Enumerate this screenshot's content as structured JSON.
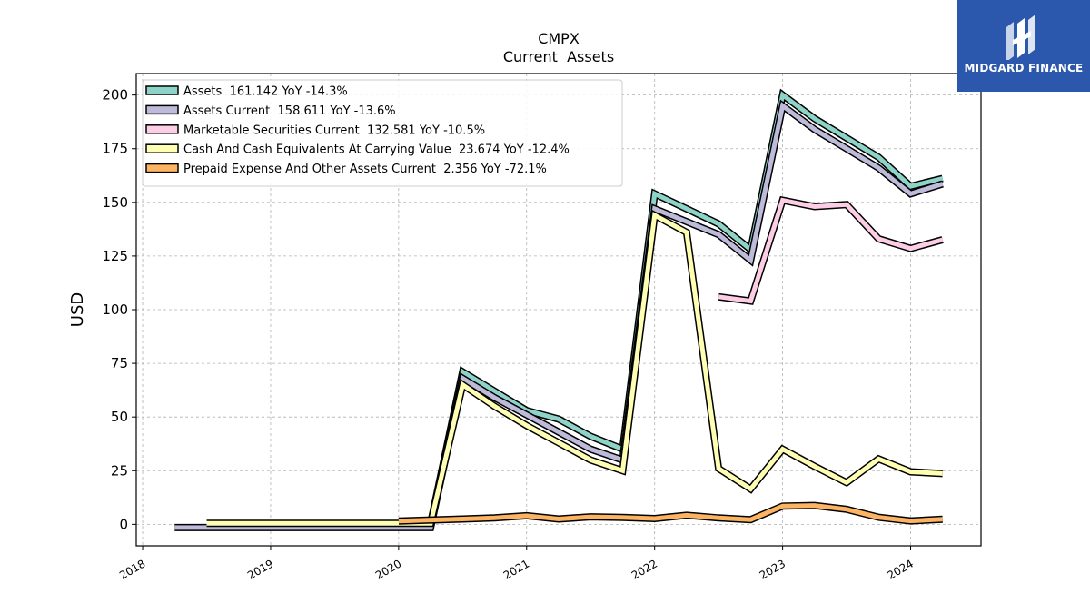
{
  "chart_data": {
    "type": "line",
    "title": "CMPX",
    "subtitle": "Current  Assets",
    "ylabel": "USD",
    "xlabel": "",
    "xlim": [
      2017.95,
      2024.55
    ],
    "ylim": [
      -10,
      210
    ],
    "xticks": [
      2018,
      2019,
      2020,
      2021,
      2022,
      2023,
      2024
    ],
    "xtick_labels": [
      "2018",
      "2019",
      "2020",
      "2021",
      "2022",
      "2023",
      "2024"
    ],
    "yticks": [
      0,
      25,
      50,
      75,
      100,
      125,
      150,
      175,
      200
    ],
    "grid": true,
    "legend_position": "top-left",
    "series": [
      {
        "name": "Assets  161.142 YoY -14.3%",
        "color": "#8dd3c7",
        "points": [
          [
            2020.0,
            0.5
          ],
          [
            2020.25,
            0.5
          ],
          [
            2020.5,
            71
          ],
          [
            2020.75,
            62
          ],
          [
            2021.0,
            53
          ],
          [
            2021.25,
            49
          ],
          [
            2021.5,
            41
          ],
          [
            2021.75,
            35
          ],
          [
            2022.0,
            154
          ],
          [
            2022.25,
            147
          ],
          [
            2022.5,
            140
          ],
          [
            2022.75,
            128
          ],
          [
            2023.0,
            200
          ],
          [
            2023.25,
            189
          ],
          [
            2023.5,
            180
          ],
          [
            2023.75,
            171
          ],
          [
            2024.0,
            157.5
          ],
          [
            2024.25,
            161.142
          ]
        ]
      },
      {
        "name": "Assets Current  158.611 YoY -13.6%",
        "color": "#bebada",
        "points": [
          [
            2018.25,
            -1.5
          ],
          [
            2018.5,
            -1.5
          ],
          [
            2018.75,
            -1.5
          ],
          [
            2019.0,
            -1.5
          ],
          [
            2019.25,
            -1.5
          ],
          [
            2019.5,
            -1.5
          ],
          [
            2019.75,
            -1.5
          ],
          [
            2020.0,
            -1.5
          ],
          [
            2020.25,
            -1.5
          ],
          [
            2020.5,
            68
          ],
          [
            2020.75,
            59
          ],
          [
            2021.0,
            51
          ],
          [
            2021.25,
            43
          ],
          [
            2021.5,
            35
          ],
          [
            2021.75,
            30
          ],
          [
            2022.0,
            147
          ],
          [
            2022.25,
            141
          ],
          [
            2022.5,
            135
          ],
          [
            2022.75,
            123
          ],
          [
            2023.0,
            195
          ],
          [
            2023.25,
            184
          ],
          [
            2023.5,
            175
          ],
          [
            2023.75,
            166
          ],
          [
            2024.0,
            154
          ],
          [
            2024.25,
            158.611
          ]
        ]
      },
      {
        "name": "Marketable Securities Current  132.581 YoY -10.5%",
        "color": "#fccde5",
        "points": [
          [
            2022.5,
            106
          ],
          [
            2022.75,
            104
          ],
          [
            2023.0,
            151
          ],
          [
            2023.25,
            148
          ],
          [
            2023.5,
            149
          ],
          [
            2023.75,
            133
          ],
          [
            2024.0,
            128.5
          ],
          [
            2024.25,
            132.581
          ]
        ]
      },
      {
        "name": "Cash And Cash Equivalents At Carrying Value  23.674 YoY -12.4%",
        "color": "#ffffb3",
        "points": [
          [
            2018.5,
            0.5
          ],
          [
            2018.75,
            0.5
          ],
          [
            2019.0,
            0.5
          ],
          [
            2019.25,
            0.5
          ],
          [
            2019.5,
            0.5
          ],
          [
            2019.75,
            0.5
          ],
          [
            2020.0,
            0.5
          ],
          [
            2020.25,
            0.5
          ],
          [
            2020.5,
            65
          ],
          [
            2020.75,
            55
          ],
          [
            2021.0,
            46
          ],
          [
            2021.25,
            38
          ],
          [
            2021.5,
            30
          ],
          [
            2021.75,
            25
          ],
          [
            2022.0,
            144
          ],
          [
            2022.25,
            136
          ],
          [
            2022.5,
            26
          ],
          [
            2022.75,
            16.5
          ],
          [
            2023.0,
            35
          ],
          [
            2023.25,
            27
          ],
          [
            2023.5,
            19.5
          ],
          [
            2023.75,
            30.5
          ],
          [
            2024.0,
            24.5
          ],
          [
            2024.25,
            23.674
          ]
        ]
      },
      {
        "name": "Prepaid Expense And Other Assets Current  2.356 YoY -72.1%",
        "color": "#fdb462",
        "points": [
          [
            2020.0,
            1.5
          ],
          [
            2020.25,
            2.0
          ],
          [
            2020.5,
            2.5
          ],
          [
            2020.75,
            3.0
          ],
          [
            2021.0,
            4.0
          ],
          [
            2021.25,
            2.5
          ],
          [
            2021.5,
            3.5
          ],
          [
            2021.75,
            3.2
          ],
          [
            2022.0,
            2.7
          ],
          [
            2022.25,
            4.2
          ],
          [
            2022.5,
            3.0
          ],
          [
            2022.75,
            2.2
          ],
          [
            2023.0,
            8.5
          ],
          [
            2023.25,
            8.8
          ],
          [
            2023.5,
            7.0
          ],
          [
            2023.75,
            3.3
          ],
          [
            2024.0,
            1.6
          ],
          [
            2024.25,
            2.356
          ]
        ]
      }
    ]
  },
  "logo": {
    "text": "MIDGARD FINANCE",
    "background": "#2b58ad"
  }
}
